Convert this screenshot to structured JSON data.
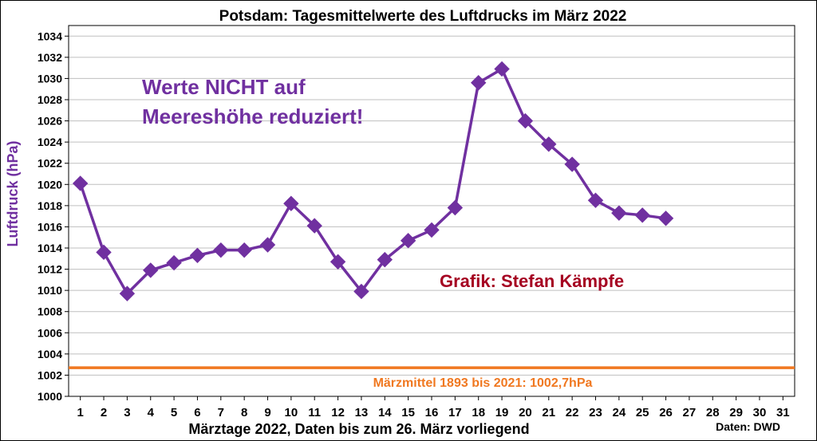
{
  "chart_data": {
    "type": "line",
    "title": "Potsdam:  Tagesmittelwerte  des  Luftdrucks  im  März 2022",
    "xlabel": "Märztage 2022, Daten bis zum 26. März vorliegend",
    "ylabel": "Luftdruck (hPa)",
    "x_ticks": [
      1,
      2,
      3,
      4,
      5,
      6,
      7,
      8,
      9,
      10,
      11,
      12,
      13,
      14,
      15,
      16,
      17,
      18,
      19,
      20,
      21,
      22,
      23,
      24,
      25,
      26,
      27,
      28,
      29,
      30,
      31
    ],
    "y_ticks": [
      1000,
      1002,
      1004,
      1006,
      1008,
      1010,
      1012,
      1014,
      1016,
      1018,
      1020,
      1022,
      1024,
      1026,
      1028,
      1030,
      1032,
      1034
    ],
    "ylim": [
      1000,
      1035
    ],
    "xlim": [
      0.5,
      31.5
    ],
    "grid": "horizontal",
    "series": [
      {
        "x": [
          1,
          2,
          3,
          4,
          5,
          6,
          7,
          8,
          9,
          10,
          11,
          12,
          13,
          14,
          15,
          16,
          17,
          18,
          19,
          20,
          21,
          22,
          23,
          24,
          25,
          26
        ],
        "values": [
          1020.1,
          1013.6,
          1009.7,
          1011.9,
          1012.6,
          1013.3,
          1013.8,
          1013.8,
          1014.3,
          1018.2,
          1016.1,
          1012.7,
          1009.9,
          1012.9,
          1014.7,
          1015.7,
          1017.8,
          1029.6,
          1030.9,
          1026.0,
          1023.8,
          1021.9,
          1018.5,
          1017.3,
          1017.1,
          1016.8
        ],
        "color": "#7030a0",
        "marker": "diamond"
      }
    ],
    "reference_line": {
      "value": 1002.7,
      "label": "Märzmittel 1893 bis 2021: 1002,7hPa",
      "color": "#f07820"
    },
    "annotations": {
      "note_line1": "Werte NICHT auf",
      "note_line2": "Meereshöhe reduziert!",
      "author": "Grafik: Stefan Kämpfe",
      "source": "Daten: DWD"
    },
    "colors": {
      "note": "#7030a0",
      "author": "#a50021",
      "ylabel": "#7030a0"
    }
  }
}
